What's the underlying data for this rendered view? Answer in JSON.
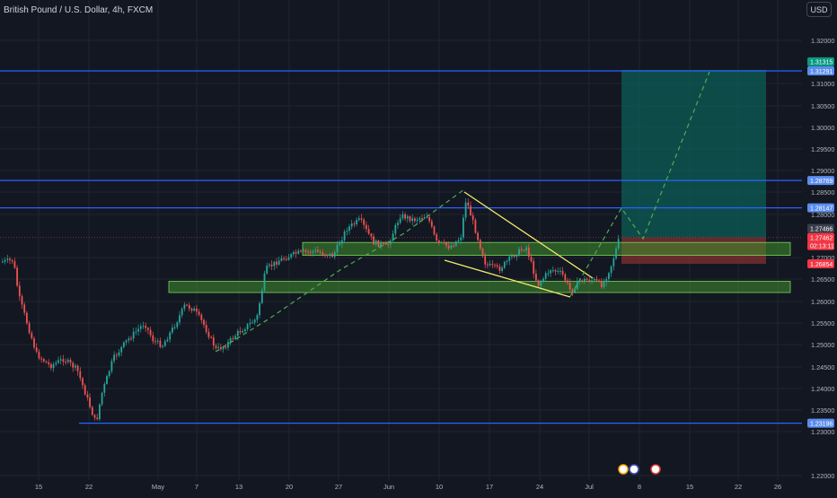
{
  "header": {
    "symbol": "British Pound / U.S. Dollar, 4h, FXCM",
    "currency": "USD"
  },
  "colors": {
    "background": "#131722",
    "grid": "#1f2430",
    "bull": "#26a69a",
    "bear": "#ef5350",
    "level_line": "#2962ff",
    "level_label": "#5b8def",
    "zone_fill": "#3f8f2e",
    "zone_border": "#7cd45c",
    "target_fill": "#0c5e57",
    "stop_fill": "#7a2f2f",
    "wedge": "#f4ea6b",
    "projection": "#4caf50"
  },
  "chart_data": {
    "type": "candlestick",
    "title": "British Pound / U.S. Dollar, 4h, FXCM",
    "y_axis": {
      "ticks": [
        "1.32000",
        "1.31000",
        "1.30500",
        "1.30000",
        "1.29500",
        "1.29000",
        "1.28500",
        "1.28000",
        "1.27000",
        "1.26500",
        "1.26000",
        "1.25500",
        "1.25000",
        "1.24500",
        "1.24000",
        "1.23500",
        "1.23000",
        "1.22000"
      ],
      "ylim": [
        1.22,
        1.32
      ]
    },
    "x_axis": {
      "ticks": [
        "15",
        "22",
        "May",
        "7",
        "13",
        "20",
        "27",
        "Jun",
        "10",
        "17",
        "24",
        "Jul",
        "8",
        "15",
        "22",
        "26"
      ]
    },
    "horizontal_levels": [
      {
        "price_label": "1.31291"
      },
      {
        "price_label": "1.28769"
      },
      {
        "price_label": "1.28147"
      },
      {
        "price_label": "1.23196"
      }
    ],
    "price_labels": [
      {
        "text": "1.31315",
        "kind": "target"
      },
      {
        "text": "1.31291",
        "kind": "level"
      },
      {
        "text": "1.28769",
        "kind": "level"
      },
      {
        "text": "1.28147",
        "kind": "level"
      },
      {
        "text": "1.27466",
        "kind": "entry"
      },
      {
        "text": "1.27462",
        "kind": "current"
      },
      {
        "text": "02:13:11",
        "kind": "countdown"
      },
      {
        "text": "1.26854",
        "kind": "stop"
      },
      {
        "text": "1.23196",
        "kind": "level"
      }
    ],
    "zones": [
      {
        "name": "resistance-zone",
        "low": 1.2705,
        "high": 1.2735
      },
      {
        "name": "support-zone",
        "low": 1.262,
        "high": 1.2645
      }
    ],
    "position": {
      "entry": 1.27466,
      "target": 1.31315,
      "stop": 1.26854
    },
    "grid": true,
    "legend": "none"
  }
}
